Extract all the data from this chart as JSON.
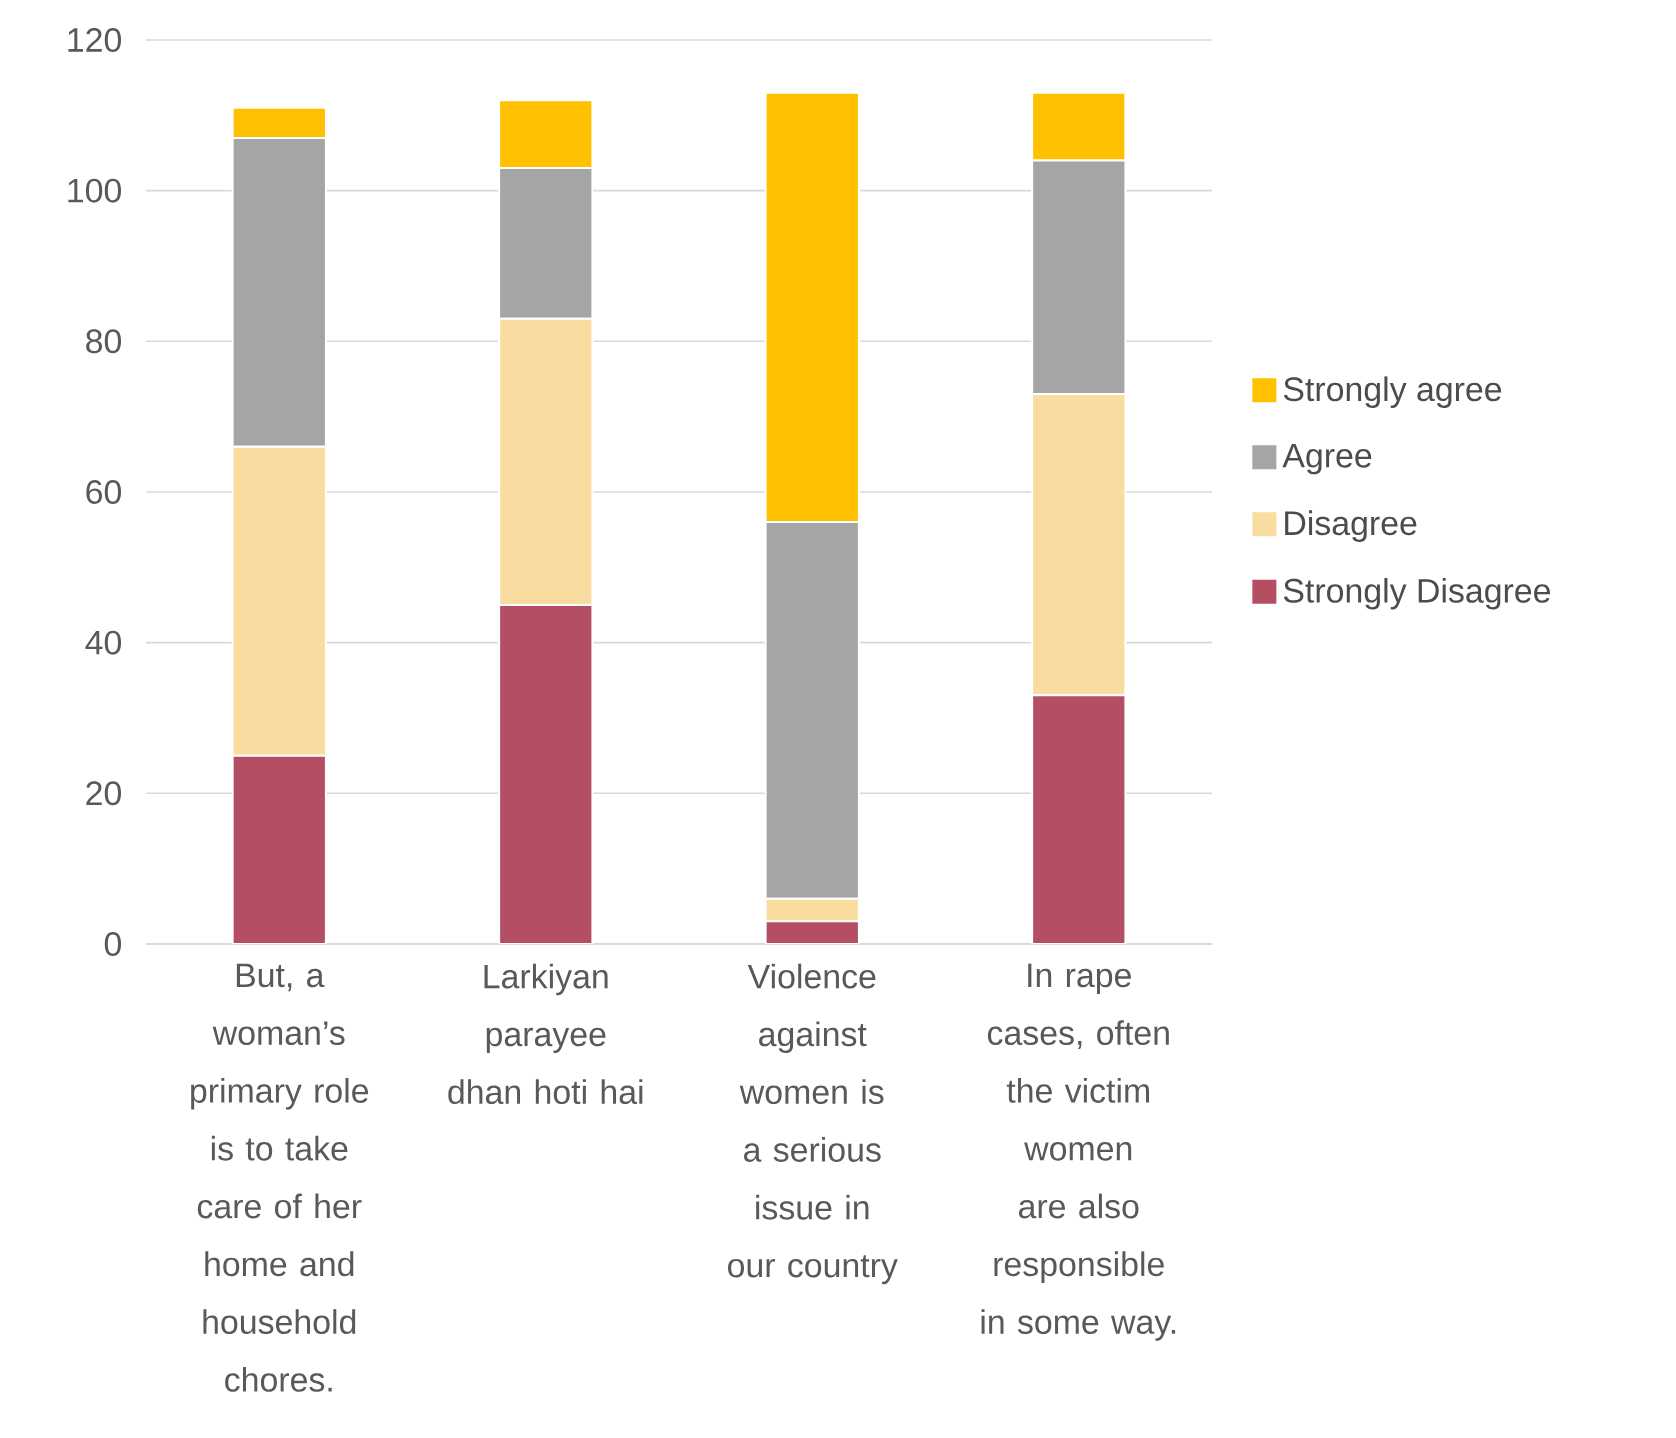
{
  "chart_data": {
    "type": "bar",
    "stacked": true,
    "categories": [
      "But, a woman’s primary role is to take care of her home and household chores.",
      "Larkiyan parayee dhan hoti hai",
      "Violence against women is a serious issue in our country",
      "In rape cases, often the victim women are also responsible in some way."
    ],
    "series": [
      {
        "name": "Strongly Disagree",
        "color": "#b44e64",
        "values": [
          25,
          45,
          3,
          33
        ]
      },
      {
        "name": "Disagree",
        "color": "#f8dca0",
        "values": [
          41,
          38,
          3,
          40
        ]
      },
      {
        "name": "Agree",
        "color": "#a5a5a5",
        "values": [
          41,
          20,
          50,
          31
        ]
      },
      {
        "name": "Strongly agree",
        "color": "#ffc000",
        "values": [
          4,
          9,
          57,
          9
        ]
      }
    ],
    "ylim": [
      0,
      120
    ],
    "yticks": [
      0,
      20,
      40,
      60,
      80,
      100,
      120
    ],
    "grid": "y",
    "legend": "right"
  }
}
